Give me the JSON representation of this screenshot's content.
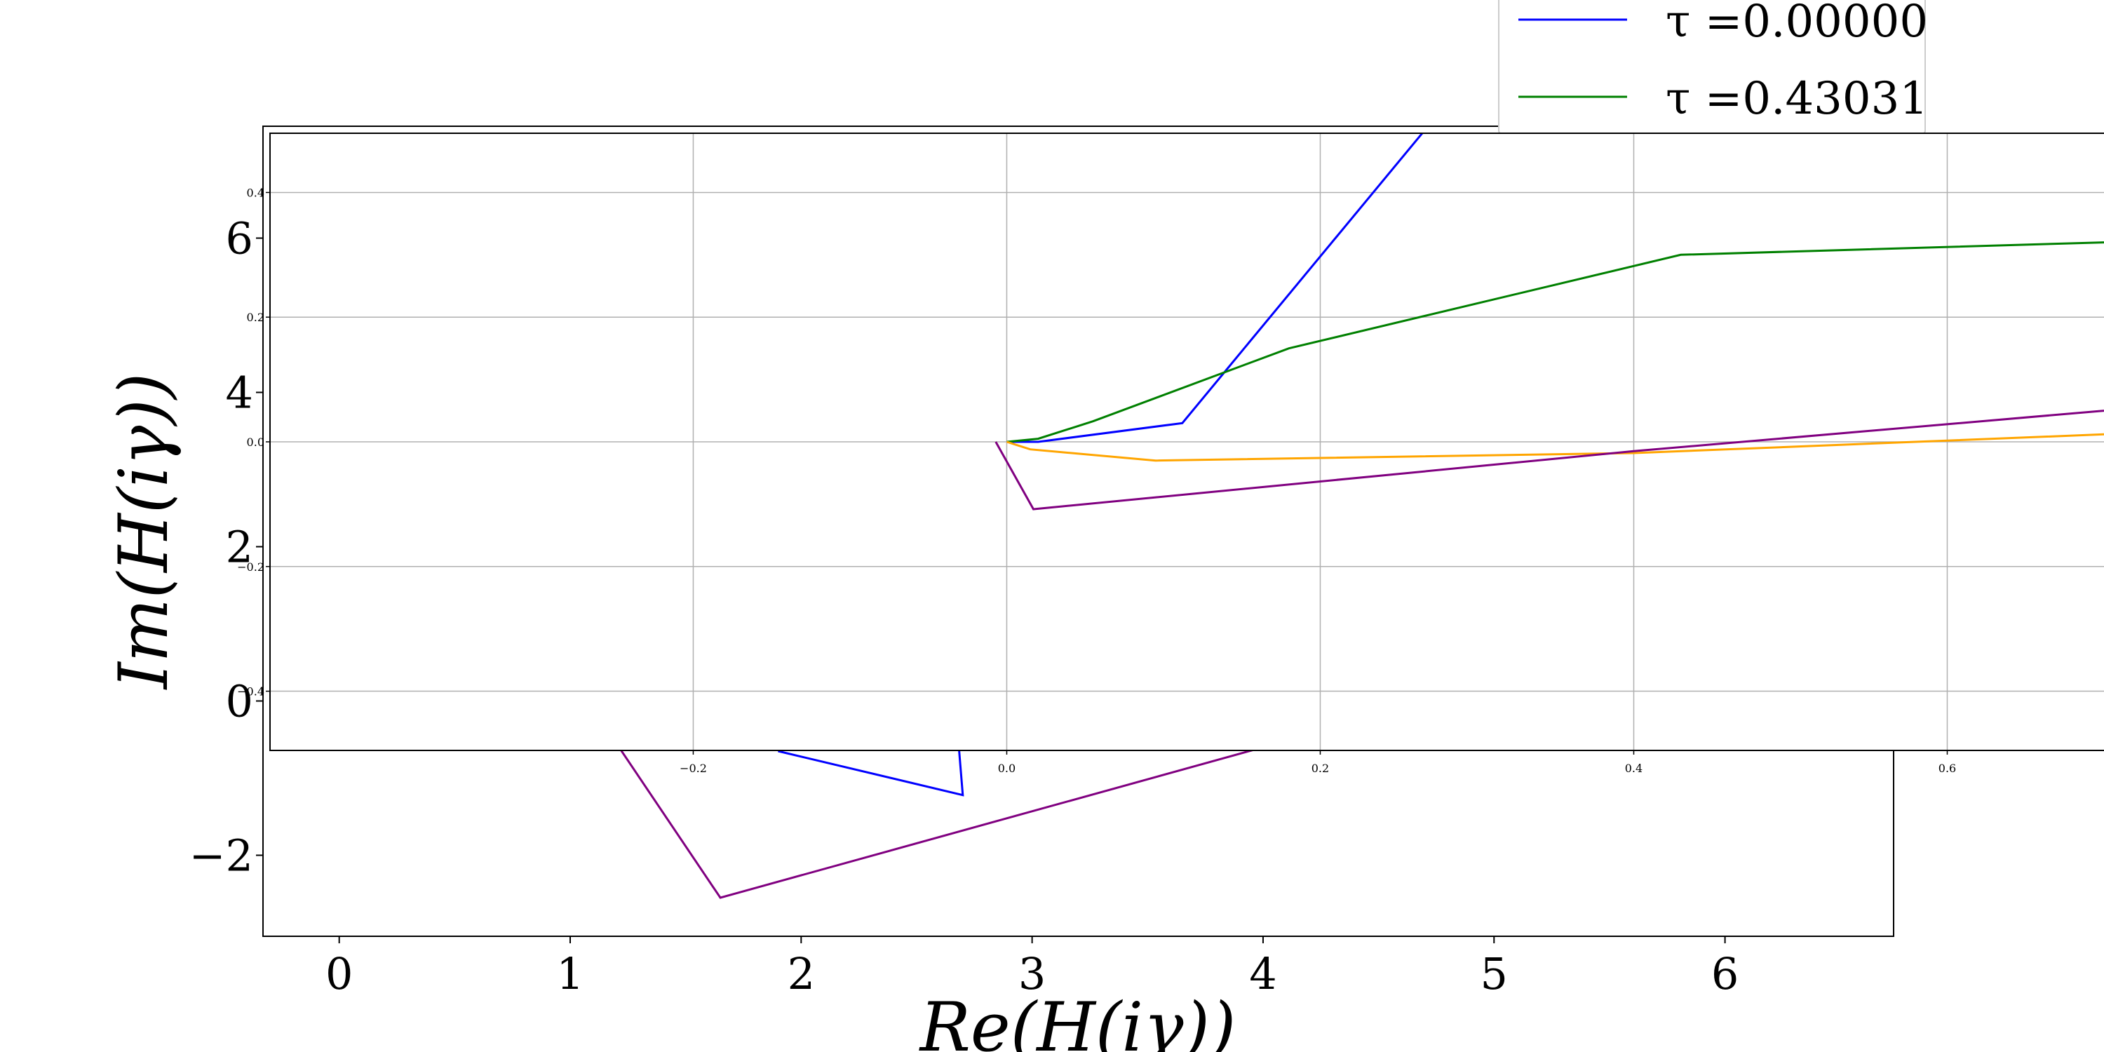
{
  "chart_data": [
    {
      "type": "line",
      "role": "main",
      "xlabel": "Re(H(iγ))",
      "ylabel": "Im(H(iγ))",
      "xlim": [
        -0.33,
        6.73
      ],
      "ylim": [
        -3.05,
        7.45
      ],
      "xticks": [
        0,
        1,
        2,
        3,
        4,
        5,
        6
      ],
      "yticks": [
        -2,
        0,
        2,
        4,
        6
      ],
      "xtick_labels": [
        "0",
        "1",
        "2",
        "3",
        "4",
        "5",
        "6"
      ],
      "ytick_labels": [
        "−2",
        "0",
        "2",
        "4",
        "6"
      ],
      "grid": false,
      "legend_position": "upper-right",
      "series": [
        {
          "name": "τ =0.00000",
          "color": "#0000ff",
          "x": [
            1.9,
            2.7,
            2.68
          ],
          "y": [
            -0.65,
            -1.22,
            -0.5
          ]
        },
        {
          "name": "τ =0.43031",
          "color": "#008000",
          "x": [],
          "y": []
        },
        {
          "name": "",
          "color": "#800080",
          "x": [
            1.2,
            1.65,
            4.0
          ],
          "y": [
            -0.55,
            -2.55,
            -0.6
          ]
        },
        {
          "name": "",
          "color": "#808080",
          "x": [
            1.43,
            6.73
          ],
          "y": [
            -0.5,
            -0.55
          ]
        }
      ]
    },
    {
      "type": "line",
      "role": "inset",
      "xlim": [
        -0.47,
        0.7
      ],
      "ylim": [
        -0.495,
        0.495
      ],
      "xticks": [
        -0.2,
        0.0,
        0.2,
        0.4,
        0.6
      ],
      "yticks": [
        -0.4,
        -0.2,
        0.0,
        0.2,
        0.4
      ],
      "xtick_labels": [
        "−0.2",
        "0.0",
        "0.2",
        "0.4",
        "0.6"
      ],
      "ytick_labels": [
        "−0.4",
        "−0.2",
        "0.0",
        "0.2",
        "0.4"
      ],
      "grid": true,
      "series": [
        {
          "name": "",
          "color": "#0000ff",
          "x": [
            0.0,
            0.02,
            0.112,
            0.27,
            0.35
          ],
          "y": [
            0.0,
            0.0,
            0.03,
            0.51,
            0.75
          ]
        },
        {
          "name": "",
          "color": "#008000",
          "x": [
            0.0,
            0.02,
            0.055,
            0.18,
            0.43,
            0.7
          ],
          "y": [
            0.0,
            0.005,
            0.033,
            0.15,
            0.3,
            0.32
          ]
        },
        {
          "name": "",
          "color": "#ffa500",
          "x": [
            0.0,
            0.015,
            0.095,
            0.4,
            0.7
          ],
          "y": [
            0.0,
            -0.012,
            -0.03,
            -0.018,
            0.012
          ]
        },
        {
          "name": "",
          "color": "#800080",
          "x": [
            -0.007,
            0.017,
            0.4,
            0.7
          ],
          "y": [
            0.0,
            -0.108,
            -0.015,
            0.05
          ]
        }
      ]
    }
  ]
}
